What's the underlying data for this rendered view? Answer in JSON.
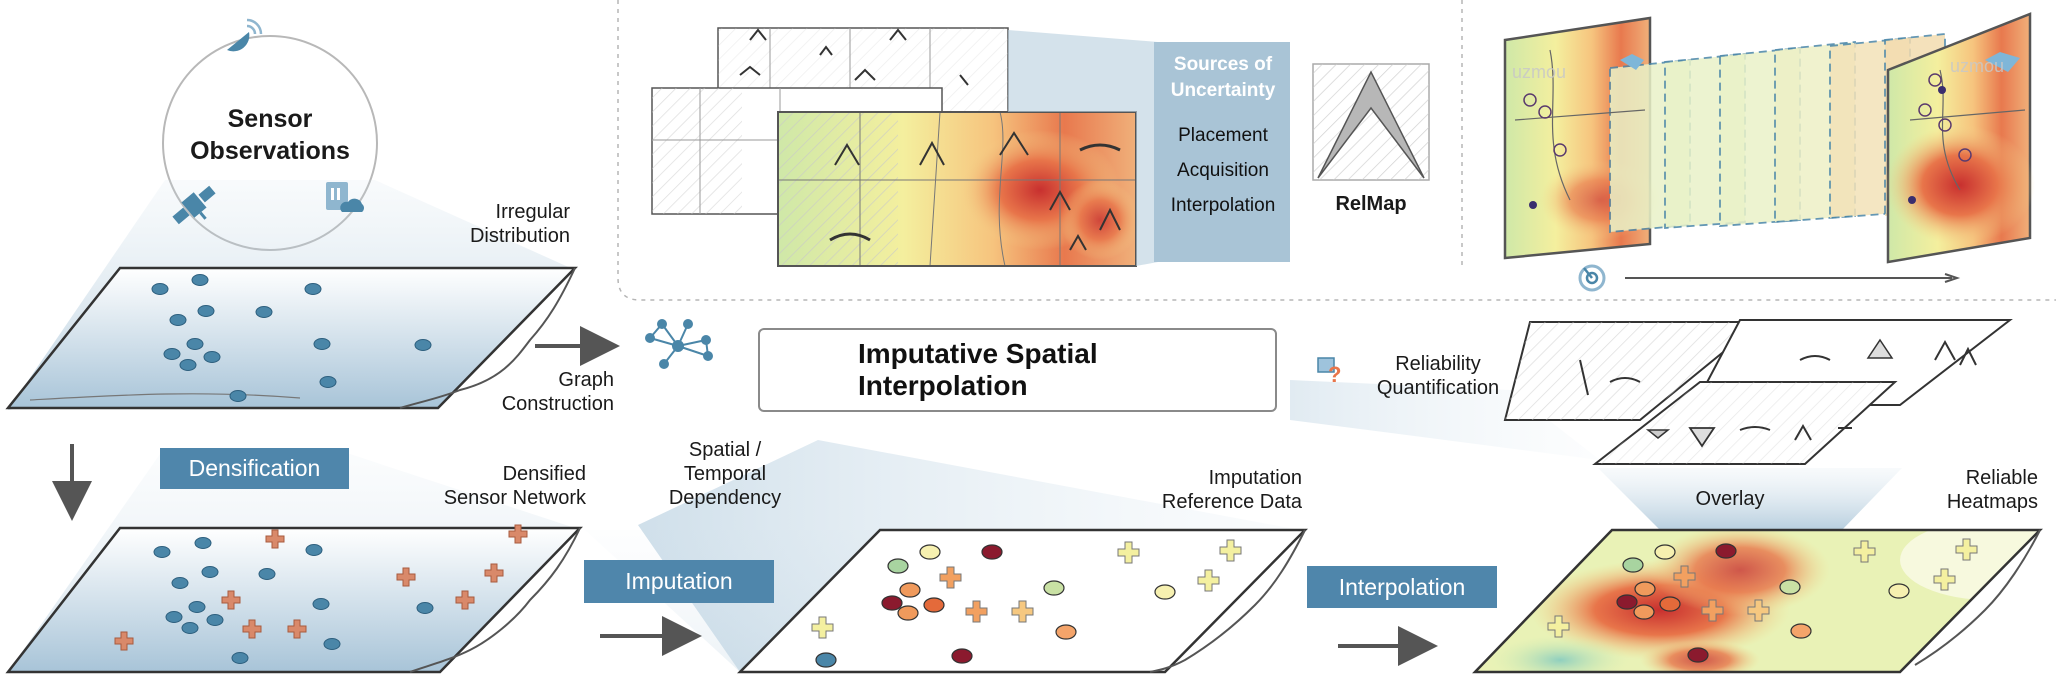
{
  "sensor_observations": {
    "title_line1": "Sensor",
    "title_line2": "Observations"
  },
  "labels": {
    "irregular_line1": "Irregular",
    "irregular_line2": "Distribution",
    "graph_line1": "Graph",
    "graph_line2": "Construction",
    "densified_line1": "Densified",
    "densified_line2": "Sensor Network",
    "spatial_line1": "Spatial /",
    "spatial_line2": "Temporal",
    "spatial_line3": "Dependency",
    "imputation_ref_line1": "Imputation",
    "imputation_ref_line2": "Reference Data",
    "overlay": "Overlay",
    "reliable_line1": "Reliable",
    "reliable_line2": "Heatmaps",
    "reliability_line1": "Reliability",
    "reliability_line2": "Quantification"
  },
  "steps": {
    "densification": "Densification",
    "imputation": "Imputation",
    "interpolation": "Interpolation"
  },
  "isi_title": "Imputative Spatial Interpolation",
  "uncertainty": {
    "header_line1": "Sources of",
    "header_line2": "Uncertainty",
    "items": [
      "Placement",
      "Acquisition",
      "Interpolation"
    ]
  },
  "relmap_label": "RelMap",
  "watermark": "uzmou",
  "colors": {
    "steel_blue": "#4f86ab",
    "sensor_blue": "#4a86a8",
    "orange_plus": "#d9896a",
    "dark_red": "#8b1a2e",
    "arrow_gray": "#555555"
  }
}
